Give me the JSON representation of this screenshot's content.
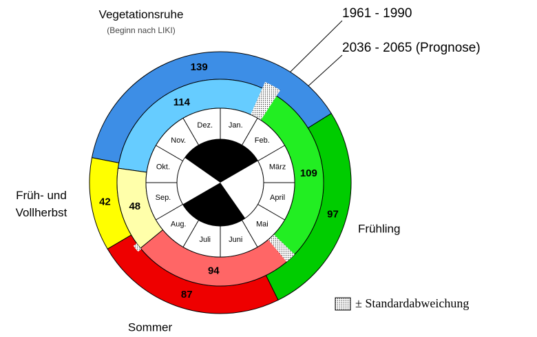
{
  "chart_data": {
    "type": "phenology-clock",
    "categories": [
      "Vegetationsruhe",
      "Frühling",
      "Sommer",
      "Früh- und Vollherbst"
    ],
    "category_note": "(Beginn nach LIKI)",
    "series": [
      {
        "name": "1961 - 1990",
        "colors": [
          "#3d8ee6",
          "#00cc00",
          "#ee0000",
          "#ffff00"
        ],
        "values": [
          139,
          97,
          87,
          42
        ]
      },
      {
        "name": "2036 - 2065 (Prognose)",
        "colors": [
          "#66ccff",
          "#22ee22",
          "#ff6666",
          "#ffffaa"
        ],
        "values": [
          114,
          109,
          94,
          48
        ]
      }
    ],
    "months": [
      "Jan.",
      "Feb.",
      "März",
      "April",
      "Mai",
      "Juni",
      "Juli",
      "Aug.",
      "Sep.",
      "Okt.",
      "Nov.",
      "Dez."
    ],
    "legend_note": "± Standardabweichung"
  }
}
